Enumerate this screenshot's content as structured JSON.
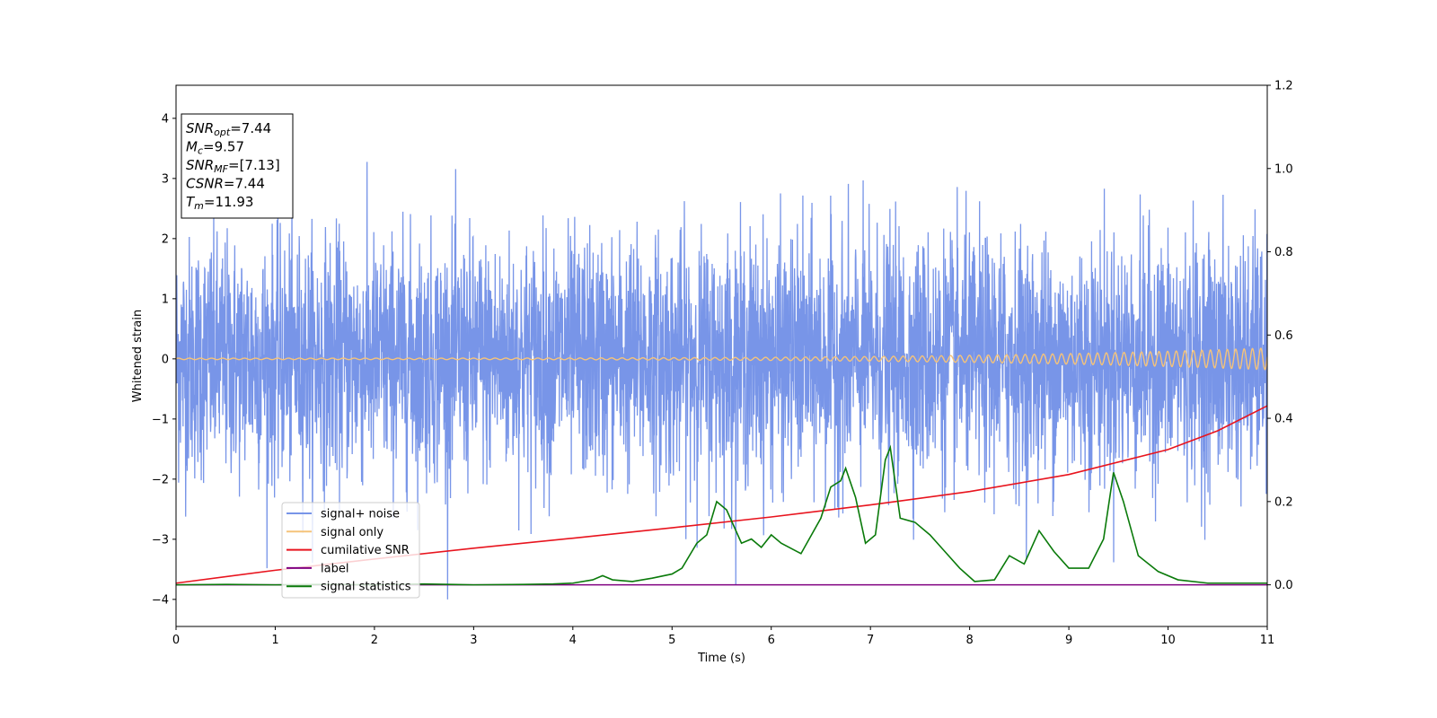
{
  "chart_data": {
    "type": "line",
    "title": "",
    "xlabel": "Time (s)",
    "ylabel": "Whitened strain",
    "xlim": [
      0,
      11
    ],
    "ylim": [
      -4.45,
      4.55
    ],
    "y2lim": [
      -0.1,
      1.2
    ],
    "x_ticks": [
      0,
      1,
      2,
      3,
      4,
      5,
      6,
      7,
      8,
      9,
      10,
      11
    ],
    "y_ticks": [
      -4,
      -3,
      -2,
      -1,
      0,
      1,
      2,
      3,
      4
    ],
    "y2_ticks": [
      "0.0",
      "0.2",
      "0.4",
      "0.6",
      "0.8",
      "1.0",
      "1.2"
    ],
    "grid": false,
    "legend_position": "lower-left",
    "info_box": {
      "lines": [
        {
          "base": "SNR",
          "sub": "opt",
          "value": "=7.44"
        },
        {
          "base": "M",
          "sub": "c",
          "value": "=9.57"
        },
        {
          "base": "SNR",
          "sub": "MF",
          "value": "=[7.13]"
        },
        {
          "base": "CSNR",
          "sub": "",
          "value": "=7.44"
        },
        {
          "base": "T",
          "sub": "m",
          "value": "=11.93"
        }
      ]
    },
    "series": [
      {
        "name": "signal+ noise",
        "axis": "left",
        "color": "#7895e8",
        "kind": "noise",
        "std": 1.0,
        "min": -4.0,
        "max": 4.15
      },
      {
        "name": "signal only",
        "axis": "left",
        "color": "#f5c37a",
        "kind": "chirp",
        "amplitude_start": 0.012,
        "amplitude_end": 0.18
      },
      {
        "name": "cumilative SNR",
        "axis": "right",
        "color": "#e8141e",
        "x": [
          0,
          1,
          2,
          3,
          4,
          5,
          6,
          7,
          8,
          9,
          10,
          10.5,
          11
        ],
        "y": [
          0.004,
          0.035,
          0.062,
          0.088,
          0.112,
          0.137,
          0.163,
          0.192,
          0.224,
          0.265,
          0.325,
          0.37,
          0.43
        ]
      },
      {
        "name": "label",
        "axis": "right",
        "color": "#800080",
        "x": [
          0,
          11
        ],
        "y": [
          0.0,
          0.0
        ]
      },
      {
        "name": "signal statistics",
        "axis": "right",
        "color": "#0a7a0a",
        "x": [
          0,
          0.5,
          1,
          1.5,
          2,
          2.5,
          3,
          3.5,
          3.8,
          4.0,
          4.2,
          4.3,
          4.4,
          4.6,
          4.8,
          5.0,
          5.1,
          5.25,
          5.35,
          5.45,
          5.55,
          5.7,
          5.8,
          5.9,
          6.0,
          6.1,
          6.3,
          6.5,
          6.6,
          6.7,
          6.75,
          6.85,
          6.95,
          7.05,
          7.15,
          7.2,
          7.3,
          7.45,
          7.6,
          7.75,
          7.9,
          8.05,
          8.25,
          8.4,
          8.55,
          8.7,
          8.85,
          9.0,
          9.2,
          9.35,
          9.45,
          9.55,
          9.7,
          9.9,
          10.1,
          10.4,
          10.7,
          11
        ],
        "y": [
          0.0,
          0.001,
          0.0,
          0.001,
          0.0,
          0.002,
          0.0,
          0.001,
          0.002,
          0.004,
          0.012,
          0.022,
          0.012,
          0.008,
          0.016,
          0.026,
          0.04,
          0.1,
          0.12,
          0.2,
          0.18,
          0.1,
          0.11,
          0.09,
          0.12,
          0.1,
          0.075,
          0.16,
          0.235,
          0.25,
          0.28,
          0.21,
          0.1,
          0.12,
          0.3,
          0.33,
          0.16,
          0.15,
          0.12,
          0.08,
          0.04,
          0.008,
          0.012,
          0.07,
          0.05,
          0.13,
          0.08,
          0.04,
          0.04,
          0.11,
          0.27,
          0.2,
          0.07,
          0.032,
          0.012,
          0.004,
          0.004,
          0.004
        ]
      }
    ]
  }
}
